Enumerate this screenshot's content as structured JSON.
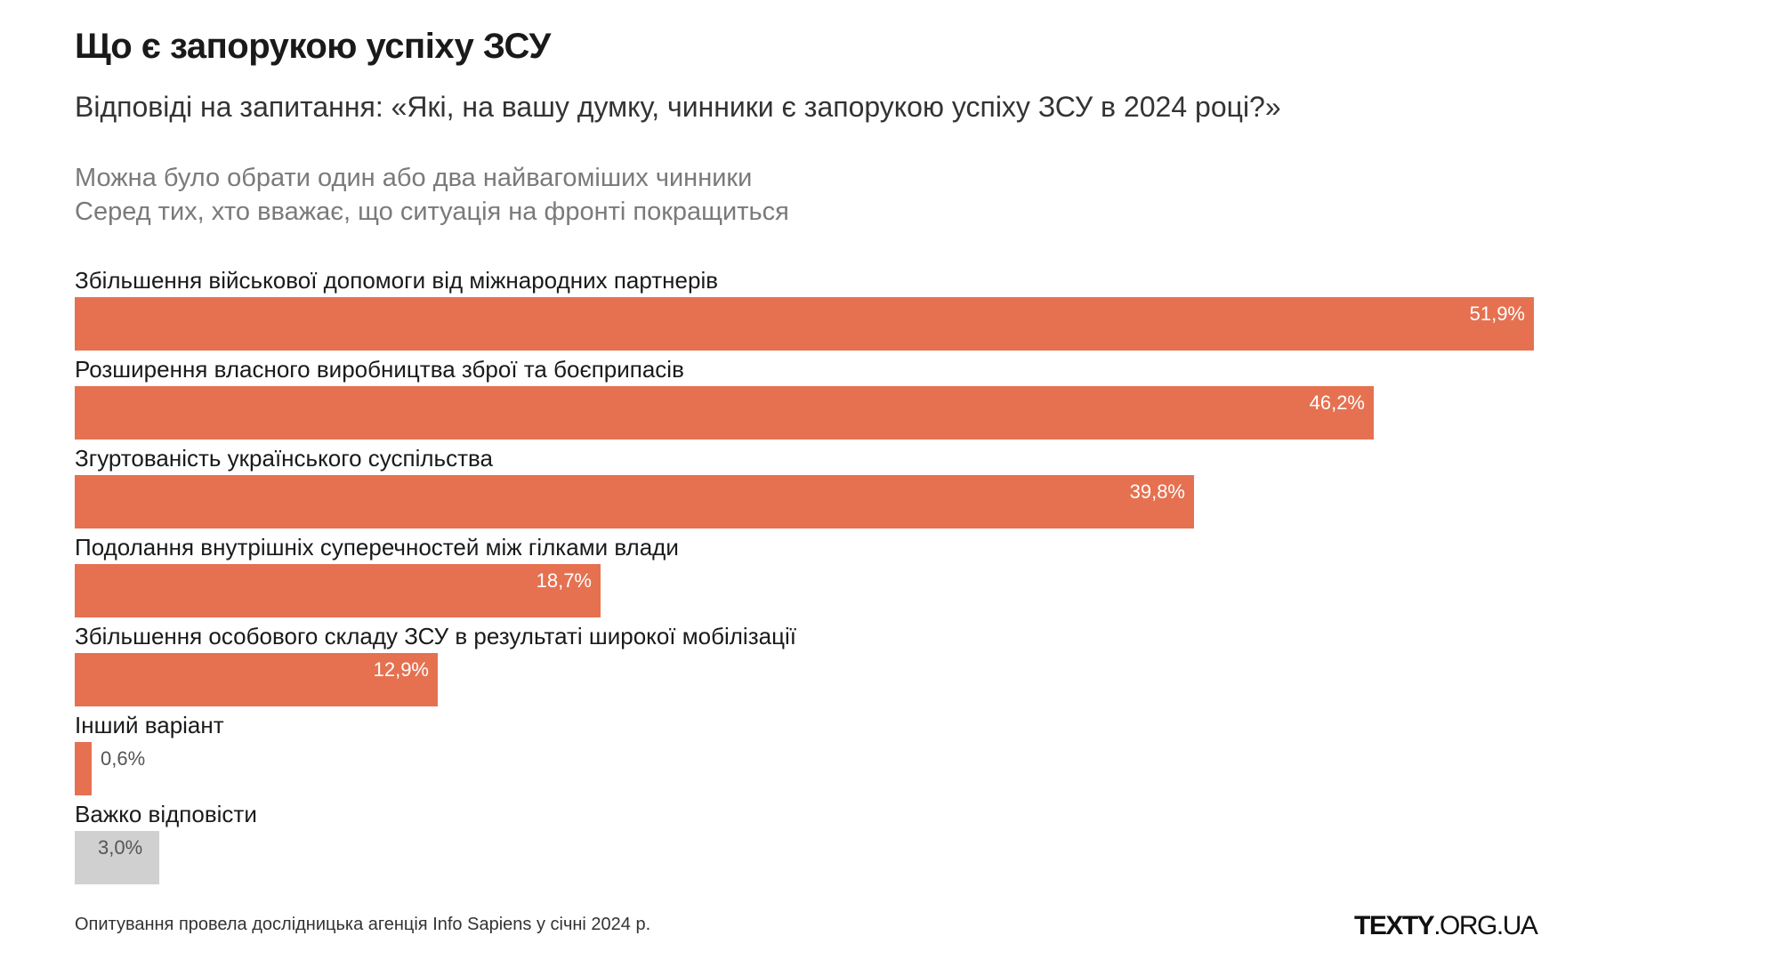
{
  "header": {
    "title": "Що є запорукою успіху ЗСУ",
    "subtitle": "Відповіді на запитання: «Які, на вашу думку, чинники є запорукою успіху ЗСУ в 2024 році?»",
    "note_line1": "Можна було обрати один або два найвагоміших чинники",
    "note_line2": "Серед тих, хто вважає, що ситуація на фронті покращиться"
  },
  "footer": {
    "source": "Опитування провела дослідницька агенція Info Sapiens у січні 2024 р.",
    "logo_bold": "TEXTY",
    "logo_rest": ".ORG.UA"
  },
  "colors": {
    "main": "#e57151",
    "muted": "#d0d0d0"
  },
  "chart_data": {
    "type": "bar",
    "orientation": "horizontal",
    "categories": [
      "Збільшення військової допомоги від міжнародних партнерів",
      "Розширення власного виробництва зброї та боєприпасів",
      "Згуртованість українського суспільства",
      "Подолання внутрішніх суперечностей між гілками влади",
      "Збільшення особового складу ЗСУ в результаті широкої мобілізації",
      "Інший варіант",
      "Важко відповісти"
    ],
    "values": [
      51.9,
      46.2,
      39.8,
      18.7,
      12.9,
      0.6,
      3.0
    ],
    "value_labels": [
      "51,9%",
      "46,2%",
      "39,8%",
      "18,7%",
      "12,9%",
      "0,6%",
      "3,0%"
    ],
    "bar_colors": [
      "#e57151",
      "#e57151",
      "#e57151",
      "#e57151",
      "#e57151",
      "#e57151",
      "#d0d0d0"
    ],
    "xlim": [
      0,
      51.9
    ],
    "grid": false,
    "legend": "none"
  }
}
